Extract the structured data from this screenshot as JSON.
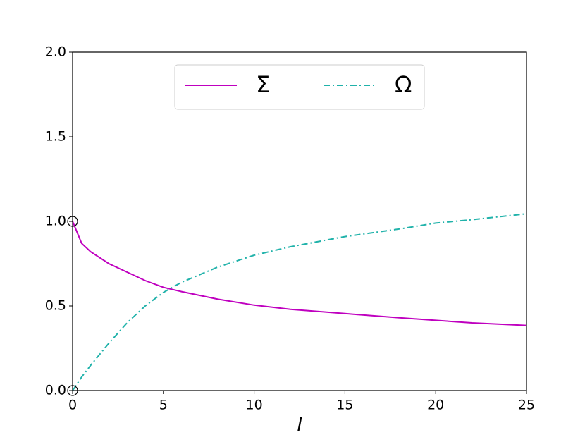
{
  "chart_data": {
    "type": "line",
    "xlabel": "l",
    "x": [
      0,
      0.5,
      1,
      2,
      3,
      4,
      5,
      6,
      8,
      10,
      12,
      15,
      18,
      20,
      22,
      25
    ],
    "series": [
      {
        "name": "Σ",
        "color": "#bf00bf",
        "linestyle": "solid",
        "values": [
          1.0,
          0.87,
          0.82,
          0.75,
          0.7,
          0.65,
          0.61,
          0.585,
          0.54,
          0.505,
          0.48,
          0.455,
          0.43,
          0.415,
          0.4,
          0.385
        ]
      },
      {
        "name": "Ω",
        "color": "#20b2aa",
        "linestyle": "dashdot",
        "values": [
          0,
          0.08,
          0.15,
          0.28,
          0.4,
          0.5,
          0.58,
          0.64,
          0.73,
          0.8,
          0.85,
          0.91,
          0.955,
          0.99,
          1.01,
          1.045
        ]
      }
    ],
    "markers": {
      "x": [
        0,
        0
      ],
      "y": [
        1,
        0
      ],
      "color": "#000000"
    },
    "xlim": [
      0,
      25
    ],
    "xticks": [
      0,
      5,
      10,
      15,
      20,
      25
    ],
    "ylim": [
      0,
      2
    ],
    "yticks": [
      {
        "value": 0,
        "label": "0.0"
      },
      {
        "value": 0.5,
        "label": "0.5"
      },
      {
        "value": 1,
        "label": "1.0"
      },
      {
        "value": 1.5,
        "label": "1.5"
      },
      {
        "value": 2,
        "label": "2.0"
      }
    ],
    "legend": "upper center",
    "grid": false
  }
}
